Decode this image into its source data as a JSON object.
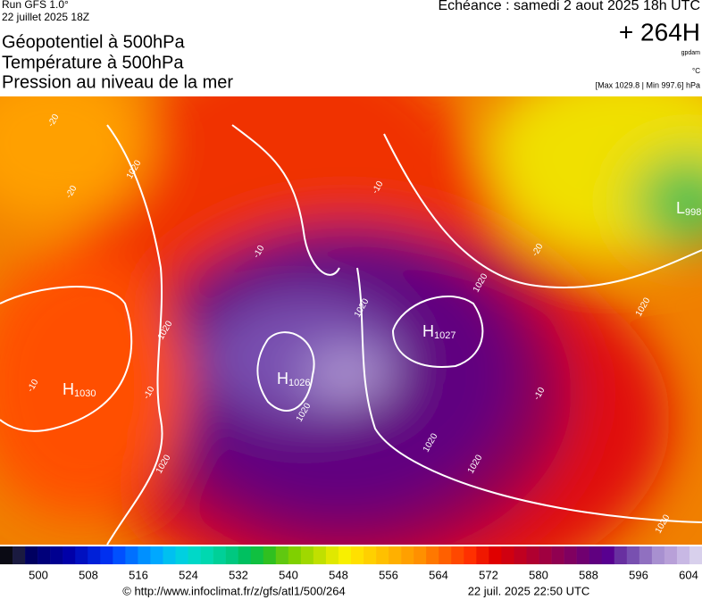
{
  "header": {
    "run": "Run GFS 1.0°",
    "date": "22 juillet 2025 18Z",
    "echeance": "Echéance : samedi 2 aout 2025 18h UTC",
    "lead": "+ 264H",
    "unit_gpdam": "gpdam",
    "unit_c": "°C",
    "range": "[Max 1029.8 | Min 997.6] hPa",
    "titles": [
      "Géopotentiel à 500hPa",
      "Température à 500hPa",
      "Pression au niveau de la mer"
    ]
  },
  "map": {
    "centers": [
      {
        "letter": "H",
        "value": "1030"
      },
      {
        "letter": "H",
        "value": "1026"
      },
      {
        "letter": "H",
        "value": "1027"
      },
      {
        "letter": "L",
        "value": "998"
      }
    ],
    "contour_labels": [
      "1020",
      "1020",
      "1020",
      "1020",
      "1020",
      "1020",
      "1020",
      "1020",
      "1020",
      "1020",
      "-10",
      "-10",
      "-10",
      "-10",
      "-10",
      "-20",
      "-20",
      "-20"
    ]
  },
  "colorbar": {
    "labels": [
      500,
      508,
      516,
      524,
      532,
      540,
      548,
      556,
      564,
      572,
      580,
      588,
      596,
      604
    ],
    "colors": [
      "#0a0a14",
      "#1a1a40",
      "#000060",
      "#00007a",
      "#000090",
      "#0000a8",
      "#0010c0",
      "#0020d8",
      "#0030f0",
      "#0050ff",
      "#0070ff",
      "#0090ff",
      "#00a8ff",
      "#00c0f0",
      "#00d0e0",
      "#00d8c8",
      "#00d8b0",
      "#00d098",
      "#00c880",
      "#00c060",
      "#10c040",
      "#30c020",
      "#60c810",
      "#80d000",
      "#a0d800",
      "#c0e000",
      "#e0e800",
      "#f8f000",
      "#ffe000",
      "#ffd000",
      "#ffc000",
      "#ffb000",
      "#ffa000",
      "#ff9000",
      "#ff7800",
      "#ff6000",
      "#ff4800",
      "#ff3000",
      "#f01800",
      "#e00000",
      "#d00010",
      "#c00020",
      "#b00030",
      "#a00040",
      "#900050",
      "#800060",
      "#700070",
      "#600080",
      "#580090",
      "#6830a0",
      "#7850b0",
      "#9070c0",
      "#a890d0",
      "#b8a0d8",
      "#c8b8e4",
      "#d8d0ec"
    ]
  },
  "footer": {
    "url": "© http://www.infoclimat.fr/z/gfs/atl1/500/264",
    "stamp": "22 juil. 2025 22:50 UTC"
  }
}
